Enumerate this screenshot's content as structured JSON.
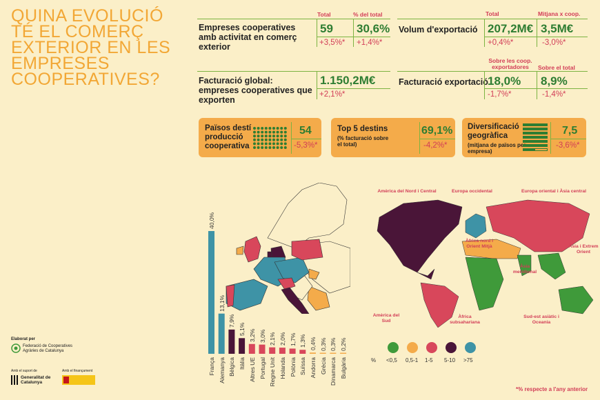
{
  "title": "QUINA EVOLUCIÓ TÉ EL COMERÇ EXTERIOR EN LES EMPRESES COOPERATIVES?",
  "stats": {
    "coops": {
      "label": "Empreses cooperatives amb activitat en comerç exterior",
      "h1": "Total",
      "h2": "% del total",
      "v1": "59",
      "v2": "30,6%",
      "c1": "+3,5%*",
      "c2": "+1,4%*"
    },
    "volum": {
      "label": "Volum d'exportació",
      "h1": "Total",
      "h2": "Mitjana x coop.",
      "v1": "207,2M€",
      "v2": "3,5M€",
      "c1": "+0,4%*",
      "c2": "-3,0%*"
    },
    "facturacio_global": {
      "label": "Facturació global: empreses cooperatives que exporten",
      "v1": "1.150,2M€",
      "c1": "+2,1%*"
    },
    "facturacio_exp": {
      "label": "Facturació exportació",
      "h1": "Sobre les coop. exportadores",
      "h2": "Sobre el total",
      "v1": "18,0%",
      "v2": "8,9%",
      "c1": "-1,7%*",
      "c2": "-1,4%*"
    }
  },
  "boxes": {
    "paisos": {
      "label": "Països destí producció cooperativa",
      "value": "54",
      "change": "-5,3%*"
    },
    "top5": {
      "label": "Top 5 destins",
      "sub": "(% facturació sobre el total)",
      "value": "69,1%",
      "change": "-4,2%*"
    },
    "divers": {
      "label": "Diversificació geogràfica",
      "sub": "(mitjana de països per empresa)",
      "value": "7,5",
      "change": "-3,6%*"
    }
  },
  "chart_data": {
    "type": "bar",
    "categories": [
      "França",
      "Alemanya",
      "Bèlgica",
      "Itàlia",
      "Altres UE",
      "Portugal",
      "Regne Unit",
      "Holanda",
      "Polònia",
      "Suïssa",
      "Andorra",
      "Grècia",
      "Dinamarca",
      "Bulgària"
    ],
    "values": [
      40.0,
      13.1,
      7.9,
      5.1,
      3.2,
      3.0,
      2.1,
      2.0,
      1.7,
      1.3,
      0.4,
      0.3,
      0.3,
      0.2
    ],
    "labels": [
      "40,0%",
      "13,1%",
      "7,9%",
      "5,1%",
      "3,2%",
      "3,0%",
      "2,1%",
      "2,0%",
      "1,7%",
      "1,3%",
      "0,4%",
      "0,3%",
      "0,3%",
      "0,2%"
    ],
    "colors": [
      "#3e93a6",
      "#3e93a6",
      "#4a1538",
      "#4a1538",
      "#d8475b",
      "#d8475b",
      "#d8475b",
      "#d8475b",
      "#d8475b",
      "#d8475b",
      "#f4ab4a",
      "#f4ab4a",
      "#f4ab4a",
      "#f4ab4a"
    ]
  },
  "world_labels": {
    "na": "Amèrica del Nord i Central",
    "weu": "Europa occidental",
    "eeu": "Europa oriental i Àsia central",
    "afn": "Àfrica nord i Orient Mitjà",
    "asia": "Àsia i Extrem Orient",
    "sasia": "Àsia meridional",
    "sa": "Amèrica del Sud",
    "afs": "Àfrica subsahariana",
    "sea": "Sud-est asiàtic i Oceania"
  },
  "legend": {
    "unit": "%",
    "items": [
      {
        "label": "<0,5",
        "color": "#3f9a3a"
      },
      {
        "label": "0,5-1",
        "color": "#f4ab4a"
      },
      {
        "label": "1-5",
        "color": "#d8475b"
      },
      {
        "label": "5-10",
        "color": "#4a1538"
      },
      {
        "label": ">75",
        "color": "#3e93a6"
      }
    ]
  },
  "footer": {
    "elaborat": "Elaborat per",
    "fed": "Federació de Cooperatives Agràries de Catalunya",
    "suport": "Amb el suport de",
    "gen": "Generalitat de Catalunya",
    "financ": "Amb el finançament",
    "note": "*% respecte a l'any anterior"
  }
}
